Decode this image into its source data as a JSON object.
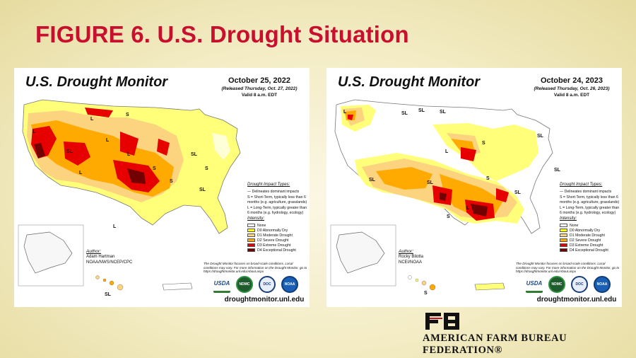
{
  "slide": {
    "title": "FIGURE 6. U.S. Drought Situation"
  },
  "maps": [
    {
      "title": "U.S. Drought Monitor",
      "date": "October 25, 2022",
      "released": "(Released Thursday, Oct. 27, 2022)",
      "valid": "Valid 8 a.m. EDT",
      "author_label": "Author:",
      "author_name": "Adam Hartman",
      "author_org": "NOAA/NWS/NCEP/CPC",
      "labels": [
        "L",
        "S",
        "L",
        "SL",
        "L",
        "SL",
        "L",
        "S",
        "L",
        "SL",
        "S",
        "L",
        "S"
      ],
      "inset_label": "SL"
    },
    {
      "title": "U.S. Drought Monitor",
      "date": "October 24, 2023",
      "released": "(Released Thursday, Oct. 26, 2023)",
      "valid": "Valid 8 a.m. EDT",
      "author_label": "Author:",
      "author_name": "Rocky Bilotta",
      "author_org": "NCEI/NOAA",
      "labels": [
        "SL",
        "SL",
        "L",
        "L",
        "S",
        "SL",
        "SL",
        "SL",
        "SL",
        "S",
        "SL",
        "L",
        "S",
        "SL"
      ],
      "inset_label": "S"
    }
  ],
  "legend": {
    "impact_heading": "Drought Impact Types:",
    "dominant": "Delineates dominant impacts",
    "short_term": "S = Short-Term, typically less than 6 months (e.g. agriculture, grasslands)",
    "long_term": "L = Long-Term, typically greater than 6 months (e.g. hydrology, ecology)",
    "intensity_heading": "Intensity:",
    "levels": [
      {
        "label": "None",
        "color": "#ffffff"
      },
      {
        "label": "D0 Abnormally Dry",
        "color": "#ffff00"
      },
      {
        "label": "D1 Moderate Drought",
        "color": "#fcd37f"
      },
      {
        "label": "D2 Severe Drought",
        "color": "#ffaa00"
      },
      {
        "label": "D3 Extreme Drought",
        "color": "#e60000"
      },
      {
        "label": "D4 Exceptional Drought",
        "color": "#730000"
      }
    ]
  },
  "footnote": "The Drought Monitor focuses on broad-scale conditions. Local conditions may vary. For more information on the Drought Monitor, go to https://droughtmonitor.unl.edu/About.aspx",
  "logos": {
    "usda": "USDA",
    "ndmc": "NDMC",
    "doc": "DOC",
    "noaa": "NOAA"
  },
  "url": "droughtmonitor.unl.edu",
  "brand": {
    "name": "AMERICAN FARM BUREAU FEDERATION®",
    "accent": "#c8102e"
  }
}
